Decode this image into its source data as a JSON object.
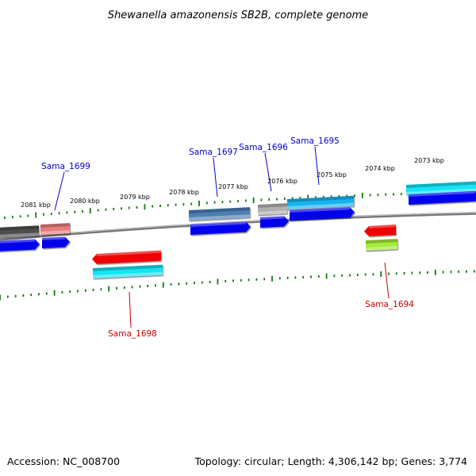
{
  "title": "Shewanella amazonensis SB2B, complete genome",
  "footer": {
    "accession": "Accession: NC_008700",
    "stats": "Topology: circular; Length: 4,306,142 bp; Genes: 3,774"
  },
  "colors": {
    "backbone": "#777777",
    "tick": "#117711",
    "forward_label": "#0000cc",
    "reverse_label": "#cc0000",
    "cds_forward": "#0000ee",
    "cds_reverse": "#ee0000"
  },
  "scale": {
    "unit": "kbp",
    "ticks": [
      {
        "label": "2081 kbp"
      },
      {
        "label": "2080 kbp"
      },
      {
        "label": "2079 kbp"
      },
      {
        "label": "2078 kbp"
      },
      {
        "label": "2077 kbp"
      },
      {
        "label": "2076 kbp"
      },
      {
        "label": "2075 kbp"
      },
      {
        "label": "2074 kbp"
      },
      {
        "label": "2073 kbp"
      }
    ]
  },
  "gene_labels": [
    {
      "text": "Sama_1699",
      "strand": "forward"
    },
    {
      "text": "Sama_1697",
      "strand": "forward"
    },
    {
      "text": "Sama_1696",
      "strand": "forward"
    },
    {
      "text": "Sama_1695",
      "strand": "forward"
    },
    {
      "text": "Sama_1698",
      "strand": "reverse"
    },
    {
      "text": "Sama_1694",
      "strand": "reverse"
    }
  ],
  "features": {
    "forward_top_track": [
      {
        "name": "dark-gray-feature",
        "color": "#4d4d4d"
      },
      {
        "name": "salmon-feature",
        "color": "#e87b7b"
      },
      {
        "name": "steel-blue-feature",
        "color": "#4a7fb5"
      },
      {
        "name": "light-gray-feature",
        "color": "#b0b0b0"
      },
      {
        "name": "sky-blue-feature",
        "color": "#18b4f0"
      },
      {
        "name": "cyan-feature",
        "color": "#14e4f4"
      }
    ],
    "forward_cds_track": [
      {
        "name": "cds-arrow-1",
        "color": "#0000ee"
      },
      {
        "name": "cds-arrow-2",
        "color": "#0000ee"
      },
      {
        "name": "cds-arrow-3",
        "color": "#0000ee"
      },
      {
        "name": "cds-arrow-4",
        "color": "#0000ee"
      },
      {
        "name": "cds-arrow-5",
        "color": "#0000ee"
      },
      {
        "name": "cds-arrow-6",
        "color": "#0000ee"
      }
    ],
    "reverse_cds_track": [
      {
        "name": "cds-arrow-1698",
        "color": "#ee0000"
      },
      {
        "name": "cds-arrow-1694",
        "color": "#ee0000"
      }
    ],
    "reverse_feature_track": [
      {
        "name": "cyan-feature-reverse",
        "color": "#14e4f4"
      },
      {
        "name": "lime-feature-reverse",
        "color": "#a4ec3c"
      }
    ]
  }
}
